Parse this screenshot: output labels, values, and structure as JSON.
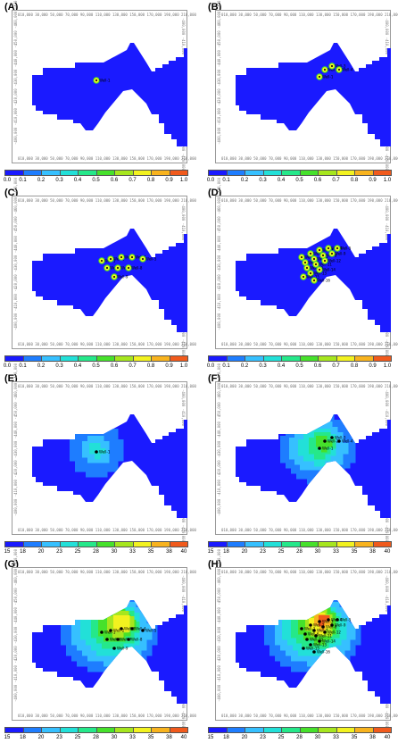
{
  "panels": [
    {
      "label": "(A)",
      "wells": [
        "Well-1"
      ],
      "colorbar": "fraction"
    },
    {
      "label": "(B)",
      "wells": [
        "Well-1",
        "Well-2",
        "Well-3",
        "Well-4"
      ],
      "colorbar": "fraction"
    },
    {
      "label": "(C)",
      "wells": [
        "Well-1",
        "Well-2",
        "Well-3",
        "Well-4",
        "Well-5",
        "Well-6",
        "Well-7",
        "Well-8",
        "Well-9"
      ],
      "colorbar": "fraction"
    },
    {
      "label": "(D)",
      "wells": [
        "Well-1",
        "Well-2",
        "Well-3",
        "Well-4",
        "Well-5",
        "Well-6",
        "Well-7",
        "Well-8",
        "Well-9",
        "Well-10",
        "Well-11",
        "Well-12",
        "Well-13",
        "Well-14",
        "Well-15",
        "Well-16"
      ],
      "colorbar": "fraction"
    },
    {
      "label": "(E)",
      "wells": [
        "Well-1"
      ],
      "colorbar": "temperature"
    },
    {
      "label": "(F)",
      "wells": [
        "Well-1",
        "Well-2",
        "Well-3",
        "Well-4"
      ],
      "colorbar": "temperature"
    },
    {
      "label": "(G)",
      "wells": [
        "Well-1",
        "Well-2",
        "Well-3",
        "Well-4",
        "Well-5",
        "Well-6",
        "Well-7",
        "Well-8",
        "Well-9"
      ],
      "colorbar": "temperature"
    },
    {
      "label": "(H)",
      "wells": [
        "Well-1",
        "Well-2",
        "Well-3",
        "Well-4",
        "Well-5",
        "Well-6",
        "Well-7",
        "Well-8",
        "Well-9",
        "Well-10",
        "Well-11",
        "Well-12",
        "Well-13",
        "Well-14",
        "Well-15",
        "Well-16"
      ],
      "colorbar": "temperature"
    }
  ],
  "colorbars": {
    "fraction": {
      "ticks": [
        "0.0",
        "0.1",
        "0.2",
        "0.3",
        "0.4",
        "0.5",
        "0.6",
        "0.7",
        "0.8",
        "0.9",
        "1.0"
      ],
      "colors": [
        "#1a1aff",
        "#1e7dff",
        "#36c0ff",
        "#22e0d8",
        "#25e88a",
        "#46e12b",
        "#a6e61e",
        "#f2f21f",
        "#f8b31e",
        "#f15a1c",
        "#e61717"
      ]
    },
    "temperature": {
      "ticks": [
        "15",
        "18",
        "20",
        "23",
        "25",
        "28",
        "30",
        "33",
        "35",
        "38",
        "40"
      ],
      "colors": [
        "#1a1aff",
        "#1e7dff",
        "#36c0ff",
        "#22e0d8",
        "#25e88a",
        "#46e12b",
        "#a6e61e",
        "#f2f21f",
        "#f8b31e",
        "#f15a1c",
        "#e61717"
      ]
    }
  },
  "x_axis_text": "010,000   30,000   50,000   70,000   90,000  110,000 130,000 150,000 170,000 190,000 210,000",
  "y_axis_text": "-400,000 -410,000 -420,000 -430,000 -440,000 -450,000 -460,000 -470,000"
}
